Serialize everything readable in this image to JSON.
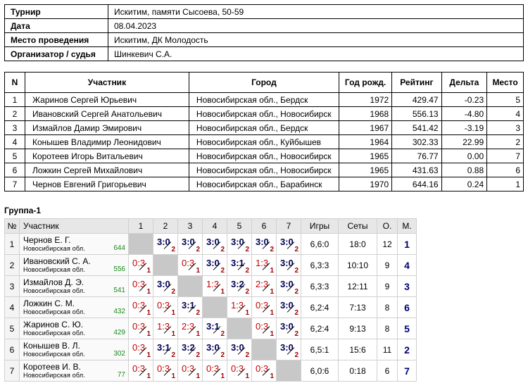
{
  "info": [
    {
      "label": "Турнир",
      "value": "Искитим, памяти Сысоева, 50-59"
    },
    {
      "label": "Дата",
      "value": "08.04.2023"
    },
    {
      "label": "Место проведения",
      "value": "Искитим, ДК Молодость"
    },
    {
      "label": "Организатор / судья",
      "value": "Шинкевич С.А."
    }
  ],
  "participants": {
    "headers": [
      "N",
      "Участник",
      "Город",
      "Год рожд.",
      "Рейтинг",
      "Дельта",
      "Место"
    ],
    "rows": [
      {
        "n": "1",
        "name": "Жаринов Сергей Юрьевич",
        "city": "Новосибирская обл., Бердск",
        "year": "1972",
        "rating": "429.47",
        "delta": "-0.23",
        "place": "5"
      },
      {
        "n": "2",
        "name": "Ивановский Сергей Анатольевич",
        "city": "Новосибирская обл., Новосибирск",
        "year": "1968",
        "rating": "556.13",
        "delta": "-4.80",
        "place": "4"
      },
      {
        "n": "3",
        "name": "Измайлов Дамир Эмирович",
        "city": "Новосибирская обл., Бердск",
        "year": "1967",
        "rating": "541.42",
        "delta": "-3.19",
        "place": "3"
      },
      {
        "n": "4",
        "name": "Конышев Владимир Леонидович",
        "city": "Новосибирская обл., Куйбышев",
        "year": "1964",
        "rating": "302.33",
        "delta": "22.99",
        "place": "2"
      },
      {
        "n": "5",
        "name": "Коротеев Игорь Витальевич",
        "city": "Новосибирская обл., Новосибирск",
        "year": "1965",
        "rating": "76.77",
        "delta": "0.00",
        "place": "7"
      },
      {
        "n": "6",
        "name": "Ложкин Сергей Михайлович",
        "city": "Новосибирская обл., Новосибирск",
        "year": "1965",
        "rating": "431.63",
        "delta": "0.88",
        "place": "6"
      },
      {
        "n": "7",
        "name": "Чернов Евгений Григорьевич",
        "city": "Новосибирская обл., Барабинск",
        "year": "1970",
        "rating": "644.16",
        "delta": "0.24",
        "place": "1"
      }
    ]
  },
  "group": {
    "title": "Группа-1",
    "headers": {
      "num": "№",
      "player": "Участник",
      "cols": [
        "1",
        "2",
        "3",
        "4",
        "5",
        "6",
        "7"
      ],
      "games": "Игры",
      "sets": "Сеты",
      "points": "О.",
      "place": "М."
    },
    "rows": [
      {
        "num": "1",
        "name": "Чернов Е. Г.",
        "city": "Новосибирская обл.",
        "rating": "644",
        "cells": [
          null,
          [
            "3:0",
            "2"
          ],
          [
            "3:0",
            "2"
          ],
          [
            "3:0",
            "2"
          ],
          [
            "3:0",
            "2"
          ],
          [
            "3:0",
            "2"
          ],
          [
            "3:0",
            "2"
          ]
        ],
        "games": "6,6:0",
        "sets": "18:0",
        "points": "12",
        "place": "1"
      },
      {
        "num": "2",
        "name": "Ивановский С. А.",
        "city": "Новосибирская обл.",
        "rating": "556",
        "cells": [
          [
            "0:3",
            "1"
          ],
          null,
          [
            "0:3",
            "1"
          ],
          [
            "3:0",
            "2"
          ],
          [
            "3:1",
            "2"
          ],
          [
            "1:3",
            "1"
          ],
          [
            "3:0",
            "2"
          ]
        ],
        "games": "6,3:3",
        "sets": "10:10",
        "points": "9",
        "place": "4"
      },
      {
        "num": "3",
        "name": "Измайлов Д. Э.",
        "city": "Новосибирская обл.",
        "rating": "541",
        "cells": [
          [
            "0:3",
            "1"
          ],
          [
            "3:0",
            "2"
          ],
          null,
          [
            "1:3",
            "1"
          ],
          [
            "3:2",
            "2"
          ],
          [
            "2:3",
            "1"
          ],
          [
            "3:0",
            "2"
          ]
        ],
        "games": "6,3:3",
        "sets": "12:11",
        "points": "9",
        "place": "3"
      },
      {
        "num": "4",
        "name": "Ложкин С. М.",
        "city": "Новосибирская обл.",
        "rating": "432",
        "cells": [
          [
            "0:3",
            "1"
          ],
          [
            "0:3",
            "1"
          ],
          [
            "3:1",
            "2"
          ],
          null,
          [
            "1:3",
            "1"
          ],
          [
            "0:3",
            "1"
          ],
          [
            "3:0",
            "2"
          ]
        ],
        "games": "6,2:4",
        "sets": "7:13",
        "points": "8",
        "place": "6"
      },
      {
        "num": "5",
        "name": "Жаринов С. Ю.",
        "city": "Новосибирская обл.",
        "rating": "429",
        "cells": [
          [
            "0:3",
            "1"
          ],
          [
            "1:3",
            "1"
          ],
          [
            "2:3",
            "1"
          ],
          [
            "3:1",
            "2"
          ],
          null,
          [
            "0:3",
            "1"
          ],
          [
            "3:0",
            "2"
          ]
        ],
        "games": "6,2:4",
        "sets": "9:13",
        "points": "8",
        "place": "5"
      },
      {
        "num": "6",
        "name": "Конышев В. Л.",
        "city": "Новосибирская обл.",
        "rating": "302",
        "cells": [
          [
            "0:3",
            "1"
          ],
          [
            "3:1",
            "2"
          ],
          [
            "3:2",
            "2"
          ],
          [
            "3:0",
            "2"
          ],
          [
            "3:0",
            "2"
          ],
          null,
          [
            "3:0",
            "2"
          ]
        ],
        "games": "6,5:1",
        "sets": "15:6",
        "points": "11",
        "place": "2"
      },
      {
        "num": "7",
        "name": "Коротеев И. В.",
        "city": "Новосибирская обл.",
        "rating": "77",
        "cells": [
          [
            "0:3",
            "1"
          ],
          [
            "0:3",
            "1"
          ],
          [
            "0:3",
            "1"
          ],
          [
            "0:3",
            "1"
          ],
          [
            "0:3",
            "1"
          ],
          [
            "0:3",
            "1"
          ],
          null
        ],
        "games": "6,0:6",
        "sets": "0:18",
        "points": "6",
        "place": "7"
      }
    ]
  }
}
